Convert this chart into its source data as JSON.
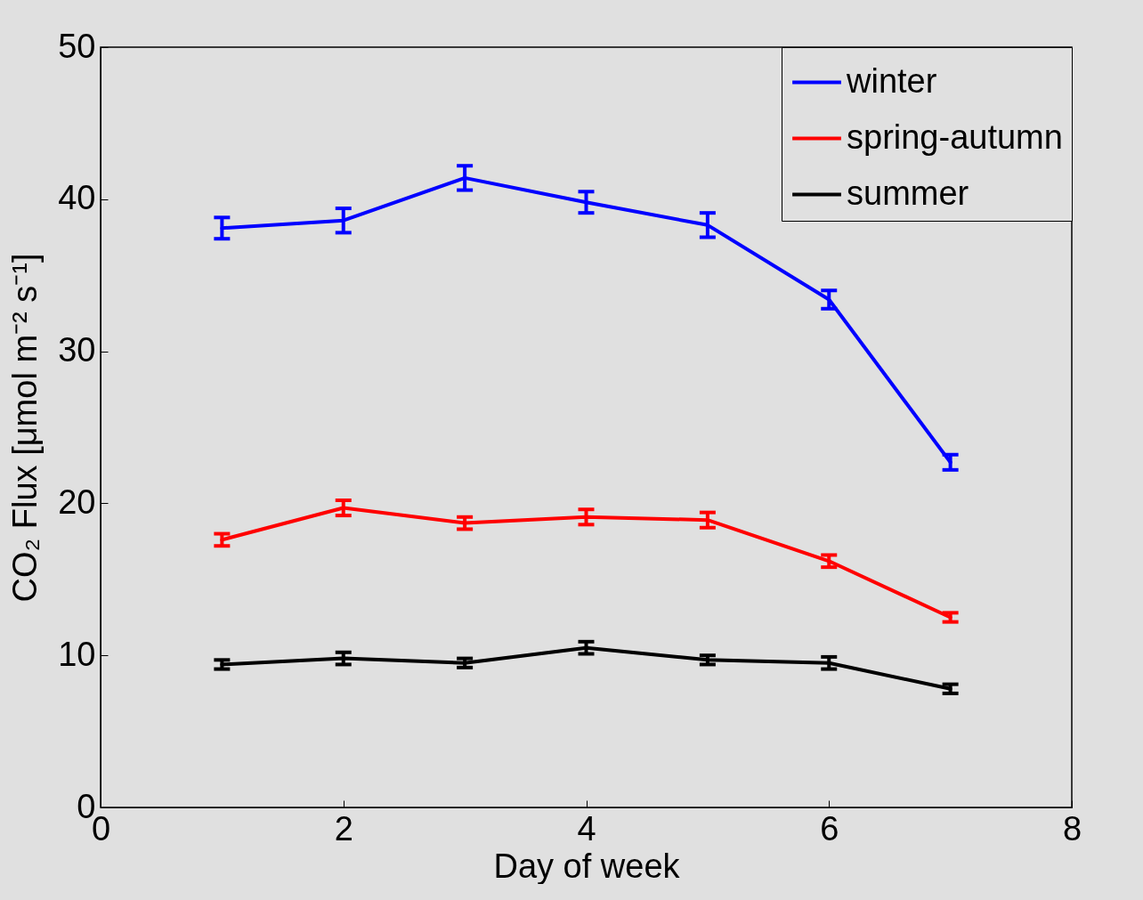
{
  "chart_data": {
    "type": "line",
    "xlabel": "Day of week",
    "ylabel": "CO₂ Flux [μmol m⁻² s⁻¹]",
    "x": [
      1,
      2,
      3,
      4,
      5,
      6,
      7
    ],
    "series": [
      {
        "name": "winter",
        "color": "#0000ff",
        "values": [
          38.1,
          38.6,
          41.4,
          39.8,
          38.3,
          33.4,
          22.7
        ],
        "errors": [
          0.7,
          0.8,
          0.8,
          0.7,
          0.8,
          0.6,
          0.5
        ]
      },
      {
        "name": "spring-autumn",
        "color": "#ff0000",
        "values": [
          17.6,
          19.7,
          18.7,
          19.1,
          18.9,
          16.2,
          12.5
        ],
        "errors": [
          0.4,
          0.5,
          0.4,
          0.5,
          0.5,
          0.4,
          0.3
        ]
      },
      {
        "name": "summer",
        "color": "#000000",
        "values": [
          9.4,
          9.8,
          9.5,
          10.5,
          9.7,
          9.5,
          7.8
        ],
        "errors": [
          0.3,
          0.4,
          0.3,
          0.4,
          0.3,
          0.4,
          0.3
        ]
      }
    ],
    "xlim": [
      0,
      8
    ],
    "xticks": [
      0,
      2,
      4,
      6,
      8
    ],
    "ylim": [
      0,
      50
    ],
    "yticks": [
      0,
      10,
      20,
      30,
      40,
      50
    ],
    "legend": "top right",
    "marker": "none",
    "line_style": "solid",
    "grid": false
  }
}
